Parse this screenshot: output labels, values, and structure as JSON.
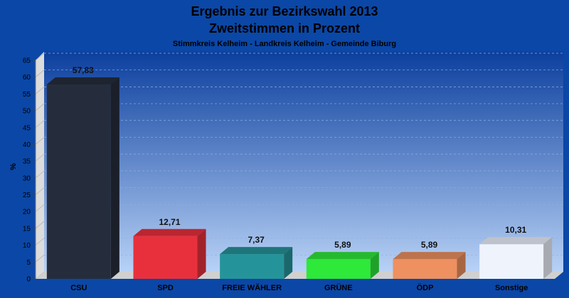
{
  "chart_data": {
    "type": "bar",
    "title": "Ergebnis zur Bezirkswahl 2013",
    "title2": "Zweitstimmen in Prozent",
    "subtitle": "Stimmkreis Kelheim - Landkreis Kelheim - Gemeinde Biburg",
    "ylabel": "%",
    "xlabel": "",
    "ylim": [
      0,
      65
    ],
    "ytick_step": 5,
    "grid": true,
    "categories": [
      "CSU",
      "SPD",
      "FREIE WÄHLER",
      "GRÜNE",
      "ÖDP",
      "Sonstige"
    ],
    "values": [
      57.83,
      12.71,
      7.37,
      5.89,
      5.89,
      10.31
    ],
    "value_labels": [
      "57,83",
      "12,71",
      "7,37",
      "5,89",
      "5,89",
      "10,31"
    ],
    "colors": [
      "#252d3c",
      "#e8303c",
      "#25949a",
      "#2ee83a",
      "#ee9060",
      "#eef3fc"
    ],
    "background_color": "#0b47a6"
  }
}
